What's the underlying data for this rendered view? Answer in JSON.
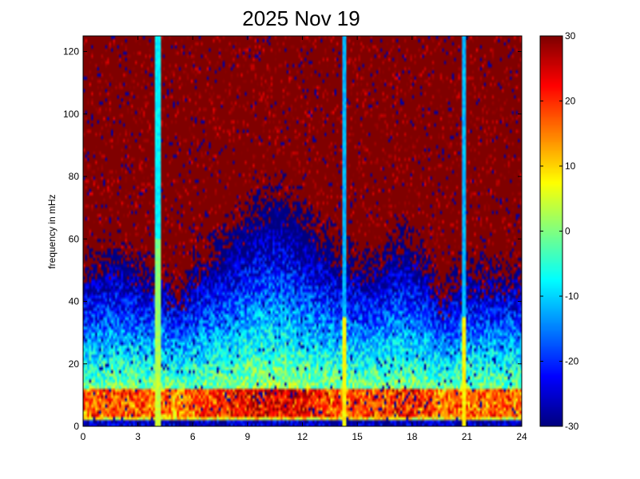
{
  "chart_data": {
    "type": "heatmap",
    "title": "2025 Nov 19",
    "xlabel": "",
    "ylabel": "frequency in mHz",
    "xlim": [
      0,
      24
    ],
    "ylim": [
      0,
      125
    ],
    "x_ticks": [
      0,
      3,
      6,
      9,
      12,
      15,
      18,
      21,
      24
    ],
    "y_ticks": [
      0,
      20,
      40,
      60,
      80,
      100,
      120
    ],
    "colorbar": {
      "range": [
        -30,
        30
      ],
      "ticks": [
        30,
        20,
        10,
        0,
        -10,
        -20,
        -30
      ],
      "colormap": "jet"
    },
    "grid": false,
    "features": {
      "vertical_streaks_hours": [
        4.1,
        14.3,
        20.8
      ],
      "high_power_band_mHz": [
        3,
        12
      ],
      "low_freq_floor_mHz": 2
    }
  }
}
